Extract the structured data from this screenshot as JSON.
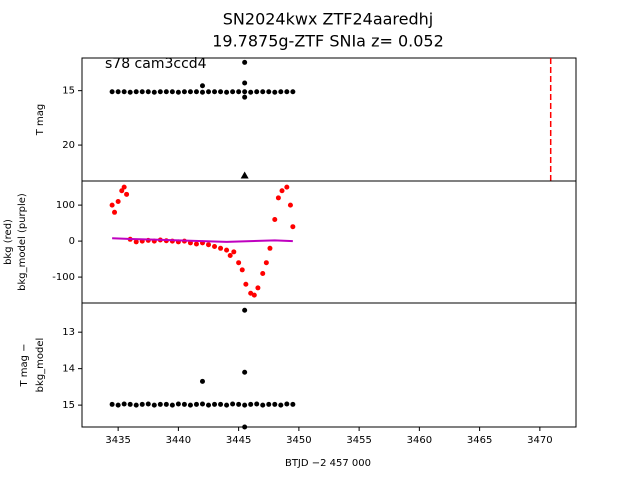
{
  "chart_data": [
    {
      "type": "scatter",
      "title": "SN2024kwx  ZTF24aaredhj",
      "subtitle": "19.7875g-ZTF SNIa z= 0.052",
      "annotation": "s78 cam3ccd4",
      "ylabel": [
        "T mag"
      ],
      "xlim": [
        3432.0,
        3473.0
      ],
      "ylim": [
        23.3,
        12.0
      ],
      "yticks": [
        15,
        20
      ],
      "series": [
        {
          "color": "#000000",
          "marker": "o",
          "x": [
            3434.5,
            3435,
            3435.5,
            3436,
            3436.5,
            3437,
            3437.5,
            3438,
            3438.5,
            3439,
            3439.5,
            3440,
            3440.5,
            3441,
            3441.5,
            3442,
            3442.5,
            3443,
            3443.5,
            3444,
            3444.5,
            3445,
            3445.5,
            3446,
            3446.5,
            3447,
            3447.5,
            3448,
            3448.5,
            3449,
            3449.5,
            3442,
            3445.5,
            3445.5,
            3445.5
          ],
          "values": [
            15.1,
            15.1,
            15.1,
            15.15,
            15.1,
            15.1,
            15.1,
            15.15,
            15.1,
            15.1,
            15.1,
            15.15,
            15.1,
            15.1,
            15.1,
            15.15,
            15.1,
            15.1,
            15.1,
            15.15,
            15.1,
            15.1,
            15.1,
            15.15,
            15.1,
            15.1,
            15.1,
            15.15,
            15.1,
            15.1,
            15.1,
            14.55,
            12.4,
            14.3,
            15.6
          ]
        },
        {
          "color": "#000000",
          "marker": "^",
          "x": [
            3445.5
          ],
          "values": [
            22.8
          ]
        }
      ],
      "vlines": [
        {
          "x": 3470.9,
          "color": "#ff0000"
        }
      ]
    },
    {
      "type": "scatter",
      "ylabel": [
        "bkg (red)",
        "bkg_model (purple)"
      ],
      "xlim": [
        3432.0,
        3473.0
      ],
      "ylim": [
        -172,
        167
      ],
      "yticks": [
        -100,
        0,
        100
      ],
      "series": [
        {
          "color": "#ff0000",
          "marker": "o",
          "x": [
            3434.5,
            3434.7,
            3435,
            3435.3,
            3435.5,
            3435.7,
            3436,
            3436.5,
            3437,
            3437.5,
            3438,
            3438.5,
            3439,
            3439.5,
            3440,
            3440.5,
            3441,
            3441.5,
            3442,
            3442.5,
            3443,
            3443.5,
            3444,
            3444.3,
            3444.6,
            3445,
            3445.3,
            3445.6,
            3446,
            3446.3,
            3446.6,
            3447,
            3447.3,
            3447.6,
            3448,
            3448.3,
            3448.6,
            3449,
            3449.3,
            3449.5
          ],
          "values": [
            100,
            80,
            110,
            140,
            150,
            130,
            5,
            -2,
            0,
            2,
            0,
            3,
            1,
            0,
            -2,
            0,
            -5,
            -8,
            -5,
            -10,
            -15,
            -20,
            -25,
            -40,
            -30,
            -60,
            -80,
            -120,
            -145,
            -150,
            -130,
            -90,
            -60,
            -20,
            60,
            120,
            140,
            150,
            100,
            40
          ]
        },
        {
          "color": "#bf00bf",
          "marker": "line",
          "x": [
            3434.5,
            3436,
            3438,
            3440,
            3442,
            3444,
            3446,
            3448,
            3449.5
          ],
          "values": [
            8,
            6,
            4,
            2,
            0,
            -2,
            0,
            2,
            0
          ]
        }
      ]
    },
    {
      "type": "scatter",
      "ylabel": [
        "T mag −",
        "bkg_model"
      ],
      "xlabel": "BTJD −2 457 000",
      "xlim": [
        3432.0,
        3473.0
      ],
      "ylim": [
        15.6,
        12.2
      ],
      "yticks": [
        13,
        14,
        15
      ],
      "xticks": [
        3435,
        3440,
        3445,
        3450,
        3455,
        3460,
        3465,
        3470
      ],
      "series": [
        {
          "color": "#000000",
          "marker": "o",
          "x": [
            3434.5,
            3435,
            3435.5,
            3436,
            3436.5,
            3437,
            3437.5,
            3438,
            3438.5,
            3439,
            3439.5,
            3440,
            3440.5,
            3441,
            3441.5,
            3442,
            3442.5,
            3443,
            3443.5,
            3444,
            3444.5,
            3445,
            3445.5,
            3446,
            3446.5,
            3447,
            3447.5,
            3448,
            3448.5,
            3449,
            3449.5,
            3442,
            3445.5,
            3445.5,
            3445.5
          ],
          "values": [
            14.98,
            15.0,
            14.97,
            14.98,
            15.0,
            14.98,
            14.97,
            15.0,
            14.98,
            14.98,
            15.0,
            14.97,
            14.98,
            15.0,
            14.98,
            14.97,
            15.0,
            14.98,
            14.98,
            15.0,
            14.97,
            14.98,
            15.0,
            14.98,
            14.97,
            15.0,
            14.98,
            14.98,
            15.0,
            14.97,
            14.98,
            14.35,
            12.4,
            14.1,
            15.6
          ]
        }
      ]
    }
  ]
}
